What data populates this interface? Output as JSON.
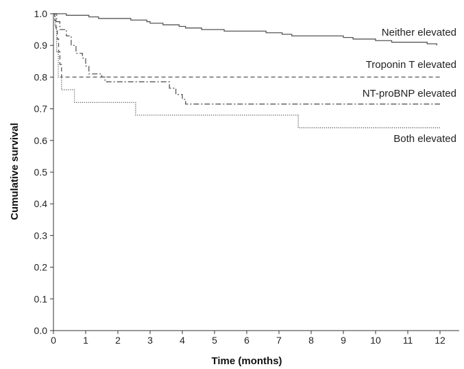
{
  "chart_data": {
    "type": "line",
    "title": "",
    "xlabel": "Time (months)",
    "ylabel": "Cumulative survival",
    "xlim": [
      0,
      12
    ],
    "ylim": [
      0.0,
      1.0
    ],
    "x_ticks": [
      "0",
      "1",
      "2",
      "3",
      "4",
      "5",
      "6",
      "7",
      "8",
      "9",
      "10",
      "11",
      "12"
    ],
    "y_ticks": [
      "0.0",
      "0.1",
      "0.2",
      "0.3",
      "0.4",
      "0.5",
      "0.6",
      "0.7",
      "0.8",
      "0.9",
      "1.0"
    ],
    "grid": false,
    "series": [
      {
        "name": "Neither elevated",
        "style": "solid",
        "color": "#555555",
        "points": [
          [
            0,
            1.0
          ],
          [
            0.4,
            0.995
          ],
          [
            1.1,
            0.99
          ],
          [
            1.4,
            0.985
          ],
          [
            2.4,
            0.98
          ],
          [
            2.9,
            0.975
          ],
          [
            3.0,
            0.97
          ],
          [
            3.4,
            0.965
          ],
          [
            3.9,
            0.96
          ],
          [
            4.1,
            0.955
          ],
          [
            4.6,
            0.95
          ],
          [
            5.3,
            0.945
          ],
          [
            6.6,
            0.94
          ],
          [
            7.1,
            0.935
          ],
          [
            7.4,
            0.93
          ],
          [
            9.0,
            0.925
          ],
          [
            9.3,
            0.92
          ],
          [
            10.0,
            0.915
          ],
          [
            10.5,
            0.91
          ],
          [
            11.6,
            0.905
          ],
          [
            11.9,
            0.9
          ]
        ]
      },
      {
        "name": "Troponin T elevated",
        "style": "dashed",
        "color": "#555555",
        "points": [
          [
            0,
            1.0
          ],
          [
            0.04,
            0.98
          ],
          [
            0.08,
            0.95
          ],
          [
            0.12,
            0.92
          ],
          [
            0.16,
            0.88
          ],
          [
            0.2,
            0.84
          ],
          [
            0.25,
            0.8
          ],
          [
            12,
            0.8
          ]
        ]
      },
      {
        "name": "NT-proBNP elevated",
        "style": "dashdot",
        "color": "#555555",
        "points": [
          [
            0,
            1.0
          ],
          [
            0.1,
            0.975
          ],
          [
            0.2,
            0.95
          ],
          [
            0.4,
            0.93
          ],
          [
            0.55,
            0.9
          ],
          [
            0.7,
            0.875
          ],
          [
            0.9,
            0.86
          ],
          [
            1.0,
            0.835
          ],
          [
            1.1,
            0.81
          ],
          [
            1.5,
            0.8
          ],
          [
            1.6,
            0.785
          ],
          [
            3.6,
            0.765
          ],
          [
            3.8,
            0.745
          ],
          [
            4.0,
            0.73
          ],
          [
            4.1,
            0.715
          ],
          [
            12,
            0.715
          ]
        ]
      },
      {
        "name": "Both elevated",
        "style": "dotted",
        "color": "#555555",
        "points": [
          [
            0,
            1.0
          ],
          [
            0.05,
            0.96
          ],
          [
            0.1,
            0.88
          ],
          [
            0.15,
            0.8
          ],
          [
            0.25,
            0.76
          ],
          [
            0.65,
            0.72
          ],
          [
            2.55,
            0.68
          ],
          [
            7.6,
            0.64
          ],
          [
            12,
            0.64
          ]
        ]
      }
    ]
  }
}
